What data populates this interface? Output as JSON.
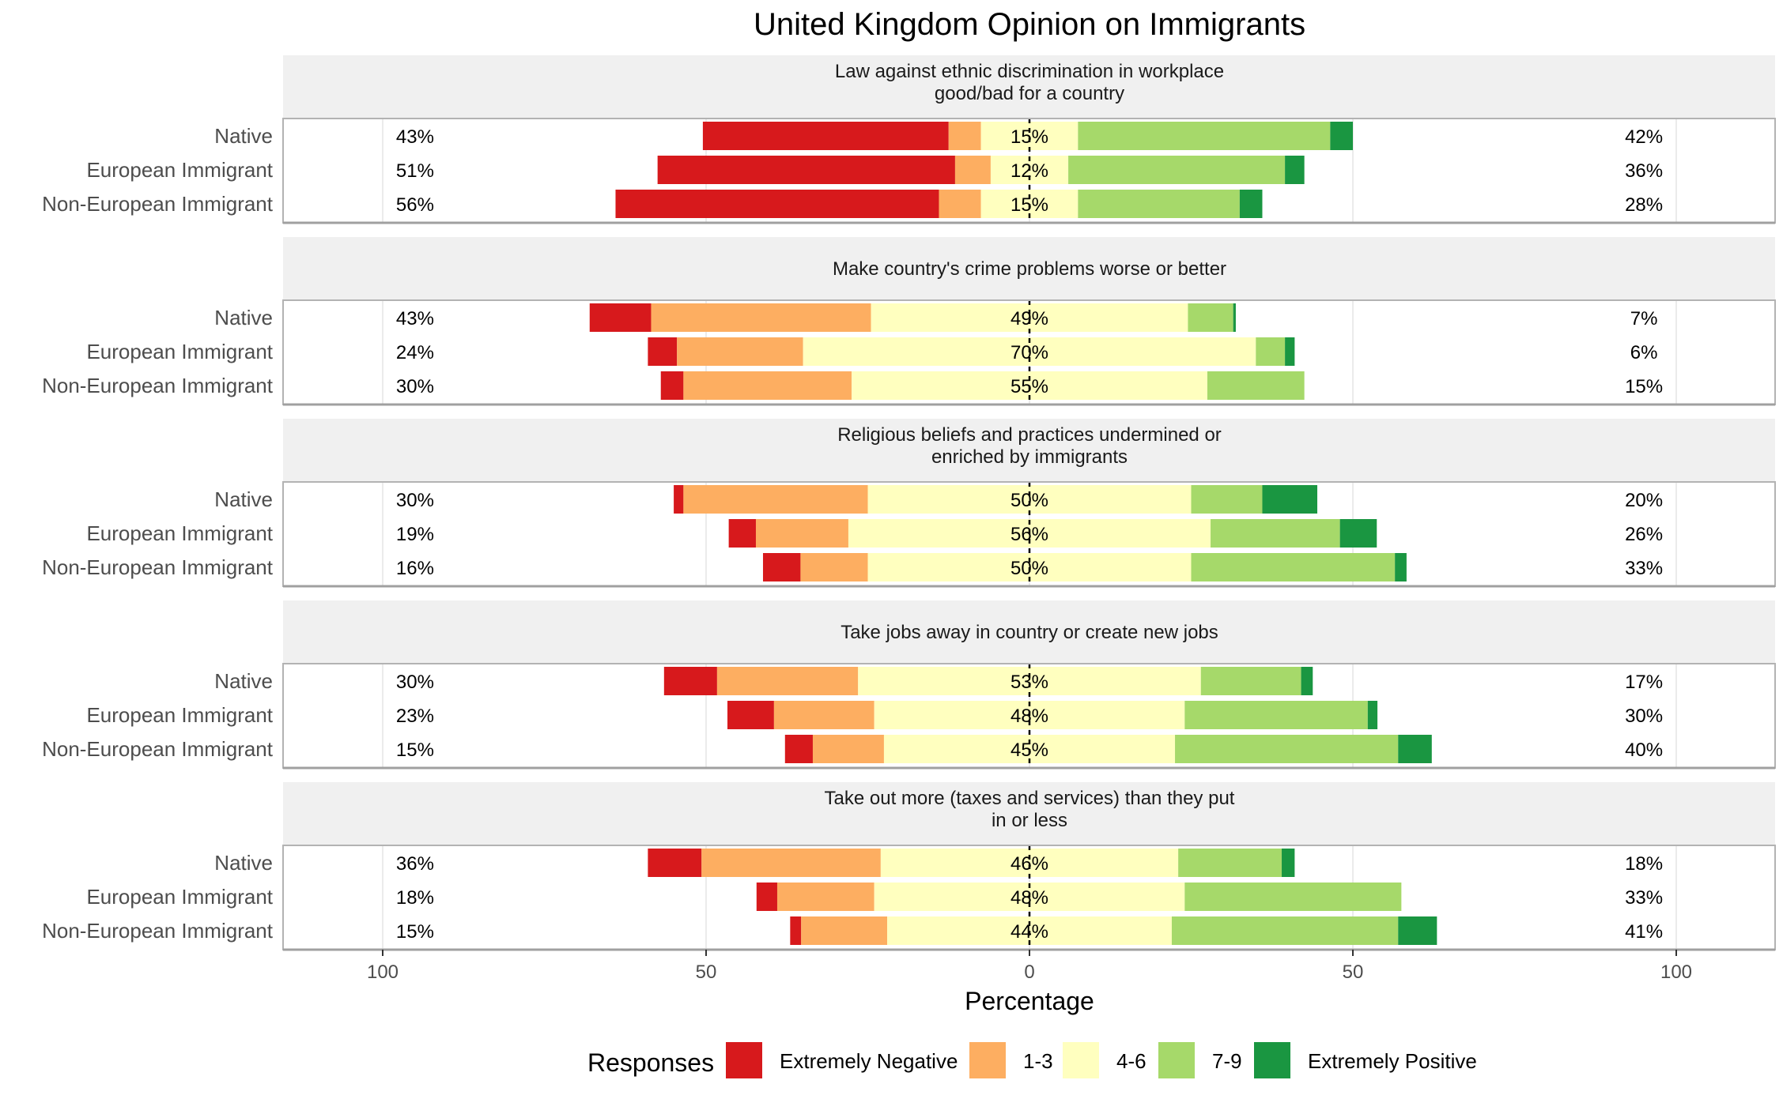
{
  "chart_data": {
    "type": "bar",
    "orientation": "horizontal-diverging",
    "title": "United Kingdom Opinion on Immigrants",
    "xlabel": "Percentage",
    "xlim": [
      -100,
      100
    ],
    "x_ticks": [
      -100,
      -50,
      0,
      50,
      100
    ],
    "x_tick_labels": [
      "100",
      "50",
      "0",
      "50",
      "100"
    ],
    "categories": [
      "Native",
      "European Immigrant",
      "Non-European Immigrant"
    ],
    "legend": {
      "title": "Responses",
      "position": "bottom",
      "items": [
        {
          "name": "Extremely Negative",
          "color": "#d7191c"
        },
        {
          "name": "1-3",
          "color": "#fdae61"
        },
        {
          "name": "4-6",
          "color": "#ffffbf"
        },
        {
          "name": "7-9",
          "color": "#a6d96a"
        },
        {
          "name": "Extremely Positive",
          "color": "#1a9641"
        }
      ]
    },
    "panels": [
      {
        "title_lines": [
          "Law against ethnic discrimination in workplace",
          "good/bad for a country"
        ],
        "rows": [
          {
            "label": "Native",
            "segments": [
              38,
              5,
              15,
              39,
              3.5
            ],
            "left_pct": "43%",
            "mid_pct": "15%",
            "right_pct": "42%"
          },
          {
            "label": "European Immigrant",
            "segments": [
              46,
              5.5,
              12,
              33.5,
              3
            ],
            "left_pct": "51%",
            "mid_pct": "12%",
            "right_pct": "36%"
          },
          {
            "label": "Non-European Immigrant",
            "segments": [
              50,
              6.5,
              15,
              25,
              3.5
            ],
            "left_pct": "56%",
            "mid_pct": "15%",
            "right_pct": "28%"
          }
        ]
      },
      {
        "title_lines": [
          "Make country's crime problems worse or better"
        ],
        "rows": [
          {
            "label": "Native",
            "segments": [
              9.5,
              34,
              49,
              7,
              0.4
            ],
            "left_pct": "43%",
            "mid_pct": "49%",
            "right_pct": "7%"
          },
          {
            "label": "European Immigrant",
            "segments": [
              4.5,
              19.5,
              70,
              4.5,
              1.5
            ],
            "left_pct": "24%",
            "mid_pct": "70%",
            "right_pct": "6%"
          },
          {
            "label": "Non-European Immigrant",
            "segments": [
              3.5,
              26,
              55,
              15,
              0
            ],
            "left_pct": "30%",
            "mid_pct": "55%",
            "right_pct": "15%"
          }
        ]
      },
      {
        "title_lines": [
          "Religious beliefs and practices undermined or",
          "enriched by immigrants"
        ],
        "rows": [
          {
            "label": "Native",
            "segments": [
              1.5,
              28.5,
              50,
              11,
              8.5
            ],
            "left_pct": "30%",
            "mid_pct": "50%",
            "right_pct": "20%"
          },
          {
            "label": "European Immigrant",
            "segments": [
              4.2,
              14.3,
              56,
              20,
              5.7
            ],
            "left_pct": "19%",
            "mid_pct": "56%",
            "right_pct": "26%"
          },
          {
            "label": "Non-European Immigrant",
            "segments": [
              5.8,
              10.4,
              50,
              31.5,
              1.8
            ],
            "left_pct": "16%",
            "mid_pct": "50%",
            "right_pct": "33%"
          }
        ]
      },
      {
        "title_lines": [
          "Take jobs away in country or create new jobs"
        ],
        "rows": [
          {
            "label": "Native",
            "segments": [
              8.2,
              21.8,
              53,
              15.5,
              1.8
            ],
            "left_pct": "30%",
            "mid_pct": "53%",
            "right_pct": "17%"
          },
          {
            "label": "European Immigrant",
            "segments": [
              7.2,
              15.5,
              48,
              28.3,
              1.5
            ],
            "left_pct": "23%",
            "mid_pct": "48%",
            "right_pct": "30%"
          },
          {
            "label": "Non-European Immigrant",
            "segments": [
              4.3,
              11,
              45,
              34.5,
              5.2
            ],
            "left_pct": "15%",
            "mid_pct": "45%",
            "right_pct": "40%"
          }
        ]
      },
      {
        "title_lines": [
          "Take out more (taxes and services) than they put",
          "in or less"
        ],
        "rows": [
          {
            "label": "Native",
            "segments": [
              8.3,
              27.7,
              46,
              16,
              2
            ],
            "left_pct": "36%",
            "mid_pct": "46%",
            "right_pct": "18%"
          },
          {
            "label": "European Immigrant",
            "segments": [
              3.2,
              15,
              48,
              33.5,
              0
            ],
            "left_pct": "18%",
            "mid_pct": "48%",
            "right_pct": "33%"
          },
          {
            "label": "Non-European Immigrant",
            "segments": [
              1.7,
              13.3,
              44,
              35,
              6
            ],
            "left_pct": "15%",
            "mid_pct": "44%",
            "right_pct": "41%"
          }
        ]
      }
    ]
  }
}
